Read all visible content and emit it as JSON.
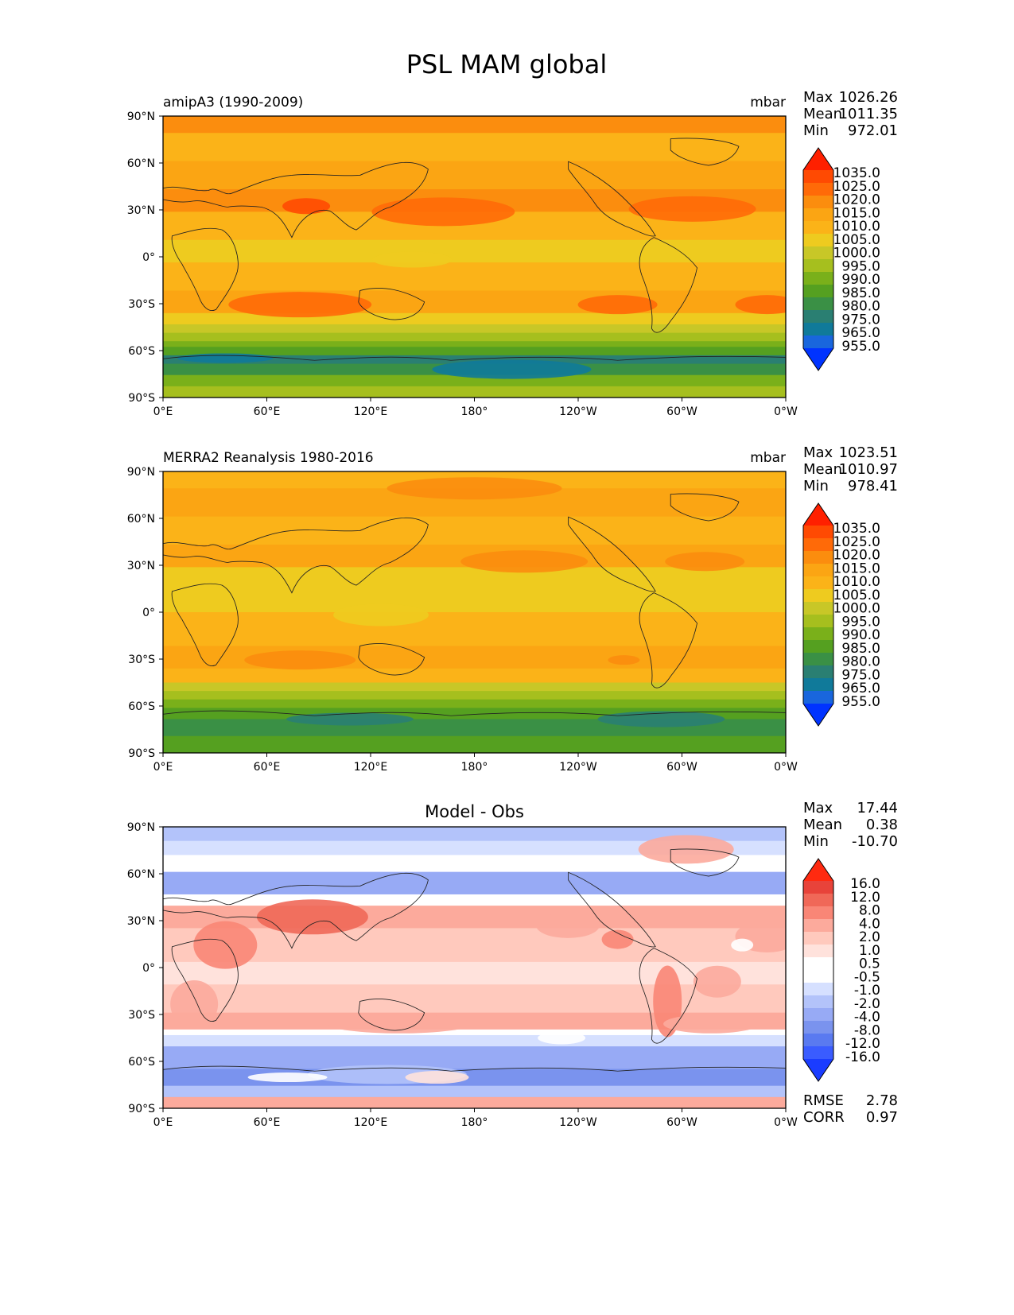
{
  "title": "PSL MAM global",
  "palettes": {
    "abs": [
      "#0033ff",
      "#1966dd",
      "#107a9a",
      "#2a7f72",
      "#3a9045",
      "#55a020",
      "#7ab01a",
      "#a6bf1e",
      "#c8c727",
      "#eecb1f",
      "#fbb318",
      "#fba513",
      "#fb8d0e",
      "#ff6a08",
      "#ff4a02",
      "#ff2000"
    ],
    "diff": [
      "#1a3cff",
      "#3a5cff",
      "#5a7af0",
      "#7a93ee",
      "#97aaf5",
      "#b3c3fa",
      "#d6e0ff",
      "#ffffff",
      "#ffffff",
      "#ffe2dc",
      "#ffc9bd",
      "#fcaa9c",
      "#f98676",
      "#f06858",
      "#e8433a",
      "#ff2a10"
    ]
  },
  "panels": [
    {
      "id": "model",
      "left_title": "amipA3 (1990-2009)",
      "right_title": "mbar",
      "center_title": "",
      "stats": [
        {
          "label": "Max",
          "value": "1026.26"
        },
        {
          "label": "Mean",
          "value": "1011.35"
        },
        {
          "label": "Min",
          "value": "972.01"
        }
      ],
      "colorbar_labels": [
        "1035.0",
        "1025.0",
        "1020.0",
        "1015.0",
        "1010.0",
        "1005.0",
        "1000.0",
        "995.0",
        "990.0",
        "985.0",
        "980.0",
        "975.0",
        "965.0",
        "955.0"
      ],
      "palette": "abs",
      "extra_stats": []
    },
    {
      "id": "obs",
      "left_title": "MERRA2 Reanalysis 1980-2016",
      "right_title": "mbar",
      "center_title": "",
      "stats": [
        {
          "label": "Max",
          "value": "1023.51"
        },
        {
          "label": "Mean",
          "value": "1010.97"
        },
        {
          "label": "Min",
          "value": "978.41"
        }
      ],
      "colorbar_labels": [
        "1035.0",
        "1025.0",
        "1020.0",
        "1015.0",
        "1010.0",
        "1005.0",
        "1000.0",
        "995.0",
        "990.0",
        "985.0",
        "980.0",
        "975.0",
        "965.0",
        "955.0"
      ],
      "palette": "abs",
      "extra_stats": []
    },
    {
      "id": "diff",
      "left_title": "",
      "right_title": "",
      "center_title": "Model - Obs",
      "stats": [
        {
          "label": "Max",
          "value": "17.44"
        },
        {
          "label": "Mean",
          "value": "0.38"
        },
        {
          "label": "Min",
          "value": "-10.70"
        }
      ],
      "colorbar_labels": [
        "16.0",
        "12.0",
        "8.0",
        "4.0",
        "2.0",
        "1.0",
        "0.5",
        "-0.5",
        "-1.0",
        "-2.0",
        "-4.0",
        "-8.0",
        "-12.0",
        "-16.0"
      ],
      "palette": "diff",
      "extra_stats": [
        {
          "label": "RMSE",
          "value": "2.78"
        },
        {
          "label": "CORR",
          "value": "0.97"
        }
      ]
    }
  ],
  "lat_ticks": [
    "90°N",
    "60°N",
    "30°N",
    "0°",
    "30°S",
    "60°S",
    "90°S"
  ],
  "lon_ticks": [
    "0°E",
    "60°E",
    "120°E",
    "180°",
    "120°W",
    "60°W",
    "0°W"
  ]
}
